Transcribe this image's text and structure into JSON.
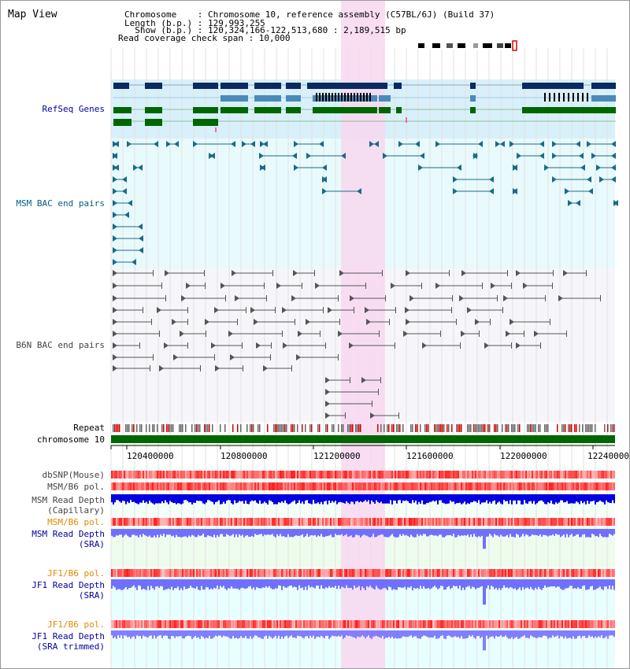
{
  "header": {
    "map_title": "Map View",
    "chromosome_line": "Chromosome    : Chromosome 10, reference assembly (C57BL/6J) (Build 37)",
    "length_line": "Length (b.p.) : 129,993,255",
    "show_line": "  Show (b.p.) : 120,324,166-122,513,680 : 2,189,515 bp",
    "coverage_line": "Read coverage check span : 10,000"
  },
  "tracks": {
    "refseq": "RefSeq Genes",
    "msm_bac": "MSM BAC end pairs",
    "b6n_bac": "B6N BAC end pairs",
    "repeat": "Repeat",
    "chromosome": "chromosome 10",
    "dbsnp": "dbSNP(Mouse)",
    "msm_b6_pol_1": "MSM/B6 pol.",
    "msm_depth_cap_1": "MSM Read Depth",
    "msm_depth_cap_2": "(Capillary)",
    "msm_b6_pol_2": "MSM/B6 pol.",
    "msm_depth_sra_1": "MSM Read Depth",
    "msm_depth_sra_2": "(SRA)",
    "jf1_b6_pol_1": "JF1/B6 pol.",
    "jf1_depth_sra_1": "JF1 Read Depth",
    "jf1_depth_sra_2": "(SRA)",
    "jf1_b6_pol_2": "JF1/B6 pol.",
    "jf1_depth_trim_1": "JF1 Read Depth",
    "jf1_depth_trim_2": "(SRA trimmed)"
  },
  "axis": {
    "ticks": [
      "120400000",
      "120800000",
      "121200000",
      "121600000",
      "122000000",
      "122400000"
    ]
  },
  "colors": {
    "highlight": "#f8d8f0",
    "refseq_bg": "#d8f0fa",
    "msm_bac_bg": "#e8fafc",
    "b6n_bac_bg": "#f6f6fa",
    "refseq_navy": "#0a2a60",
    "refseq_steel": "#4a8ab8",
    "refseq_green": "#006600",
    "depth_blue": "#0000e0",
    "depth_light": "#7070ff",
    "chromosome_bar": "#006600",
    "repeat_red": "#d00000"
  },
  "icons": {
    "chromosome_ideogram": "chromosome-ideogram-icon"
  }
}
